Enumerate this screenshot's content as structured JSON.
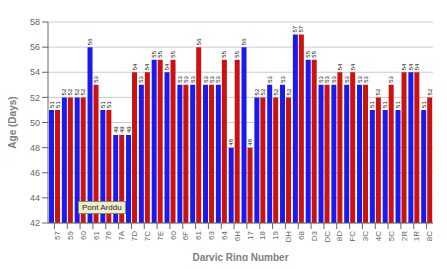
{
  "chart_data": {
    "type": "bar",
    "categories": [
      "57",
      "59",
      "60",
      "61",
      "76",
      "7A",
      "7D",
      "7C",
      "7E",
      "60",
      "6F",
      "61",
      "63",
      "64",
      "6H",
      "17",
      "18",
      "19",
      "DH",
      "68",
      "D3",
      "DC",
      "8D",
      "FC",
      "3C",
      "4C",
      "5C",
      "2R",
      "1R",
      "8C"
    ],
    "series": [
      {
        "color": "#1a1aee",
        "values": [
          51,
          52,
          52,
          56,
          51,
          49,
          49,
          53,
          55,
          54,
          53,
          53,
          53,
          53,
          48,
          56,
          52,
          53,
          53,
          57,
          55,
          53,
          53,
          53,
          53,
          51,
          51,
          51,
          54,
          51
        ]
      },
      {
        "color": "#cc1111",
        "values": [
          51,
          52,
          52,
          53,
          51,
          49,
          54,
          54,
          55,
          55,
          53,
          56,
          53,
          55,
          55,
          48,
          52,
          52,
          52,
          57,
          55,
          53,
          54,
          54,
          53,
          52,
          53,
          54,
          54,
          52
        ]
      }
    ],
    "xlabel": "Darvic Ring Number",
    "ylabel": "Age (Days)",
    "ylim": [
      42,
      58
    ],
    "yticks": [
      42,
      44,
      46,
      48,
      50,
      52,
      54,
      56,
      58
    ],
    "grid": true,
    "data_labels": true,
    "annotations": [
      "Pont Arddu"
    ]
  }
}
